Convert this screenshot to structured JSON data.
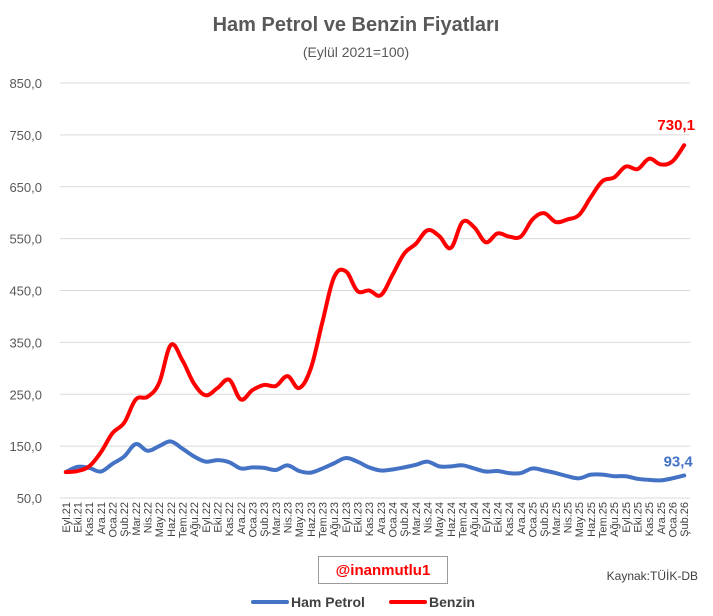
{
  "chart_data": {
    "type": "line",
    "title": "Ham Petrol ve Benzin Fiyatları",
    "subtitle": "(Eylül 2021=100)",
    "ylim": [
      50,
      850
    ],
    "yticks": [
      "50,0",
      "150,0",
      "250,0",
      "350,0",
      "450,0",
      "550,0",
      "650,0",
      "750,0",
      "850,0"
    ],
    "grid": true,
    "legend_position": "bottom",
    "categories": [
      "Eyl.21",
      "Eki.21",
      "Kas.21",
      "Ara.21",
      "Oca.22",
      "Şub.22",
      "Mar.22",
      "Nis.22",
      "May.22",
      "Haz.22",
      "Tem.22",
      "Ağu.22",
      "Eyl.22",
      "Eki.22",
      "Kas.22",
      "Ara.22",
      "Oca.23",
      "Şub.23",
      "Mar.23",
      "Nis.23",
      "May.23",
      "Haz.23",
      "Tem.23",
      "Ağu.23",
      "Eyl.23",
      "Eki.23",
      "Kas.23",
      "Ara.23",
      "Oca.24",
      "Şub.24",
      "Mar.24",
      "Nis.24",
      "May.24",
      "Haz.24",
      "Tem.24",
      "Ağu.24",
      "Eyl.24",
      "Eki.24",
      "Kas.24",
      "Ara.24",
      "Oca.25",
      "Şub.25",
      "Mar.25",
      "Nis.25",
      "May.25",
      "Haz.25",
      "Tem.25",
      "Ağu.25",
      "Eyl.25",
      "Eki.25",
      "Kas.25",
      "Ara.25",
      "Oca.26",
      "Şub.26"
    ],
    "series": [
      {
        "name": "Ham Petrol",
        "color": "#4472c4",
        "values": [
          100,
          110,
          108,
          101,
          116,
          130,
          154,
          141,
          150,
          159,
          145,
          130,
          120,
          123,
          119,
          107,
          109,
          108,
          104,
          113,
          102,
          99,
          107,
          117,
          127,
          120,
          109,
          103,
          105,
          109,
          114,
          120,
          111,
          111,
          113,
          107,
          101,
          102,
          98,
          98,
          107,
          103,
          98,
          92,
          88,
          95,
          95,
          92,
          92,
          87,
          85,
          84,
          88,
          93.4
        ]
      },
      {
        "name": "Benzin",
        "color": "#ff0000",
        "values": [
          100,
          102,
          111,
          138,
          175,
          195,
          240,
          245,
          272,
          345,
          315,
          270,
          248,
          262,
          278,
          240,
          258,
          268,
          266,
          285,
          262,
          300,
          390,
          476,
          487,
          449,
          450,
          441,
          480,
          521,
          540,
          566,
          555,
          532,
          582,
          572,
          543,
          560,
          554,
          554,
          587,
          599,
          582,
          587,
          596,
          630,
          661,
          668,
          689,
          684,
          704,
          693,
          699,
          730.1
        ]
      }
    ],
    "data_labels": {
      "Benzin": "730,1",
      "Ham Petrol": "93,4"
    },
    "source": "Kaynak:TÜİK-DB",
    "watermark": "@inanmutlu1",
    "legend": [
      "Ham Petrol",
      "Benzin"
    ]
  }
}
